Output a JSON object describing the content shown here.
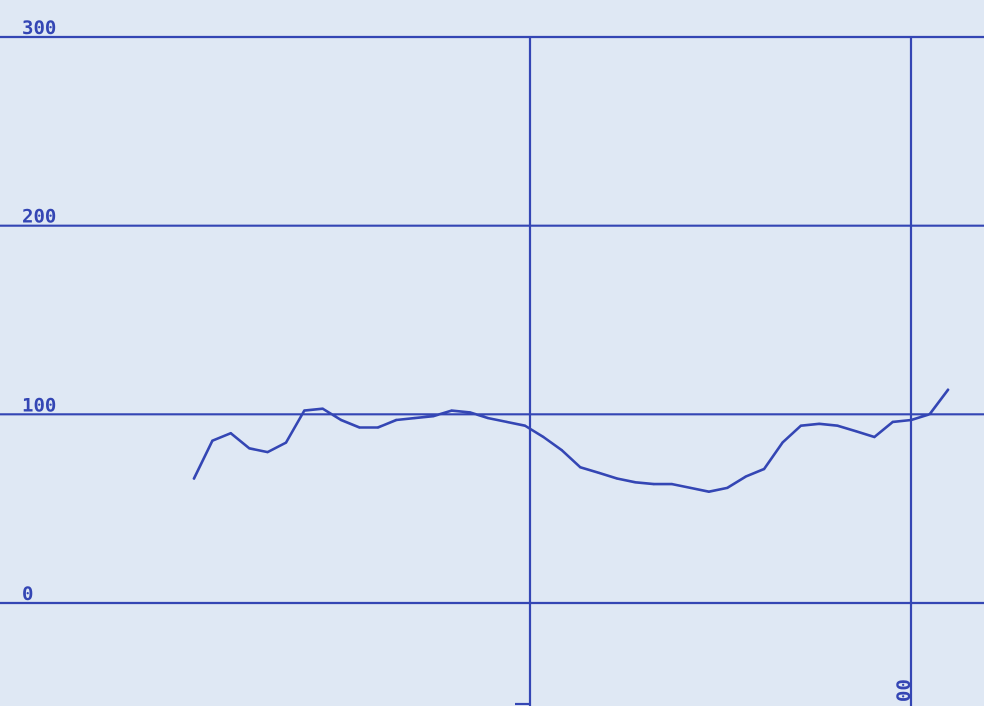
{
  "colors": {
    "paper": "#dfe8f4",
    "ink": "#3446b4"
  },
  "chart_data": {
    "type": "line",
    "title": "",
    "xlabel": "",
    "ylabel": "",
    "ylim": [
      0,
      300
    ],
    "y_ticks": [
      "0",
      "100",
      "200",
      "300"
    ],
    "x_tick_labels": [
      "00"
    ],
    "grid": true,
    "series": [
      {
        "color": "#3446b4",
        "values": [
          66,
          86,
          90,
          82,
          80,
          85,
          102,
          103,
          97,
          93,
          93,
          97,
          98,
          99,
          102,
          101,
          98,
          96,
          94,
          88,
          81,
          72,
          69,
          66,
          64,
          63,
          63,
          61,
          59,
          61,
          67,
          71,
          85,
          94,
          95,
          94,
          91,
          88,
          96,
          97,
          100,
          113
        ]
      }
    ]
  }
}
